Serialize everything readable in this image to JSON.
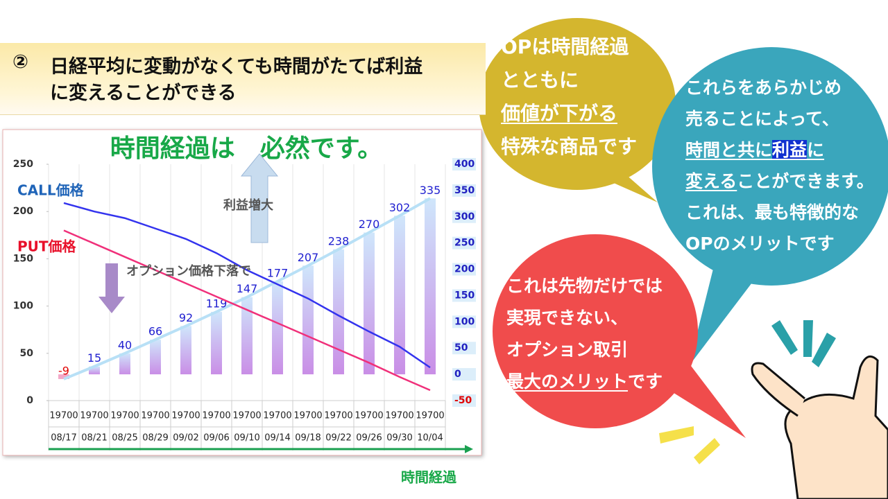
{
  "header": {
    "number": "②",
    "lines": [
      "日経平均に変動がなくても時間がたてば利益",
      "に変えることができる"
    ]
  },
  "chart_data": {
    "type": "bar",
    "title": "時間経過は　必然です。",
    "categories": [
      [
        "19700",
        "08/17"
      ],
      [
        "19700",
        "08/21"
      ],
      [
        "19700",
        "08/25"
      ],
      [
        "19700",
        "08/29"
      ],
      [
        "19700",
        "09/02"
      ],
      [
        "19700",
        "09/06"
      ],
      [
        "19700",
        "09/10"
      ],
      [
        "19700",
        "09/14"
      ],
      [
        "19700",
        "09/18"
      ],
      [
        "19700",
        "09/22"
      ],
      [
        "19700",
        "09/26"
      ],
      [
        "19700",
        "09/30"
      ],
      [
        "19700",
        "10/04"
      ]
    ],
    "series": [
      {
        "type": "bar",
        "axis": "y2",
        "color": "#c9a0e8",
        "values": [
          -9,
          15,
          40,
          66,
          92,
          119,
          147,
          177,
          207,
          238,
          270,
          302,
          335
        ]
      },
      {
        "type": "line",
        "name": "CALL価格",
        "color": "#3333ee",
        "values": [
          209,
          200,
          193,
          182,
          171,
          156,
          138,
          123,
          108,
          90,
          73,
          57,
          35
        ]
      },
      {
        "type": "line",
        "name": "PUT価格",
        "color": "#f0307a",
        "values": [
          180,
          166,
          152,
          138,
          124,
          110,
          96,
          82,
          68,
          54,
          40,
          25,
          11
        ]
      }
    ],
    "ylim": [
      0,
      250
    ],
    "yticks": [
      0,
      50,
      100,
      150,
      200,
      250
    ],
    "y2lim": [
      -50,
      400
    ],
    "y2ticks": [
      -50,
      0,
      50,
      100,
      150,
      200,
      250,
      300,
      350,
      400
    ],
    "value_label_color": "#2020d0",
    "negative_color": "#e00000",
    "annotations": [
      "利益増大",
      "オプション価格下落で"
    ],
    "x_label": "時間経過"
  },
  "bubbles": [
    [
      [
        "OPは時間経過"
      ],
      [
        "とともに"
      ],
      [
        "価値が下がる"
      ],
      [
        "特殊な商品です"
      ]
    ],
    [
      [
        "これらをあらかじめ"
      ],
      [
        "売ることによって、"
      ],
      [
        "時間と共に",
        "利益",
        "に"
      ],
      [
        "変える",
        "ことができます。"
      ],
      [
        "これは、最も特徴的な"
      ],
      [
        "OPのメリットです"
      ]
    ],
    [
      [
        "これは先物だけでは"
      ],
      [
        "実現できない、"
      ],
      [
        "オプション取引"
      ],
      [
        "最大のメリット",
        "です"
      ]
    ]
  ]
}
